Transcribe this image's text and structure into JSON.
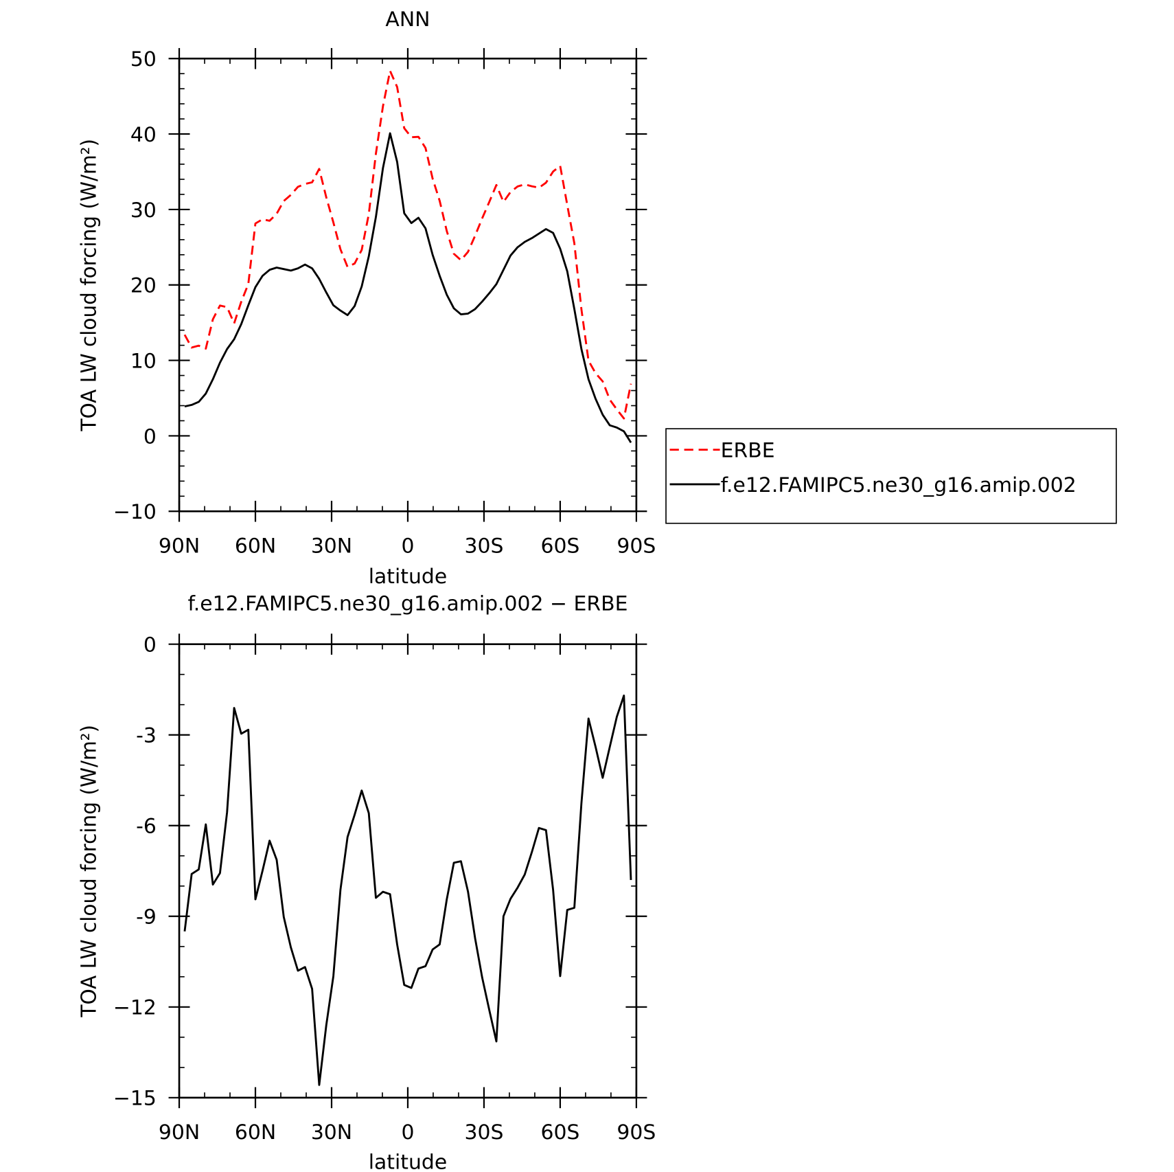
{
  "chart_data": [
    {
      "type": "line",
      "title": "ANN",
      "xlabel": "latitude",
      "ylabel": "TOA LW cloud forcing (W/m²)",
      "x": [
        87.86,
        85.1,
        82.31,
        79.53,
        76.74,
        73.95,
        71.16,
        68.37,
        65.58,
        62.79,
        60.0,
        57.21,
        54.42,
        51.63,
        48.84,
        46.04,
        43.25,
        40.46,
        37.67,
        34.88,
        32.09,
        29.3,
        26.51,
        23.72,
        20.93,
        18.14,
        15.35,
        12.56,
        9.77,
        6.98,
        4.19,
        1.4,
        -1.4,
        -4.19,
        -6.98,
        -9.77,
        -12.56,
        -15.35,
        -18.14,
        -20.93,
        -23.72,
        -26.51,
        -29.3,
        -32.09,
        -34.88,
        -37.67,
        -40.46,
        -43.25,
        -46.04,
        -48.84,
        -51.63,
        -54.42,
        -57.21,
        -60.0,
        -62.79,
        -65.58,
        -68.37,
        -71.16,
        -73.95,
        -76.74,
        -79.53,
        -82.31,
        -85.1,
        -87.86
      ],
      "xlim": [
        90,
        -90
      ],
      "xticks": [
        {
          "value": 90,
          "label": "90N"
        },
        {
          "value": 60,
          "label": "60N"
        },
        {
          "value": 30,
          "label": "30N"
        },
        0,
        {
          "value": -30,
          "label": "30S"
        },
        {
          "value": -60,
          "label": "60S"
        },
        {
          "value": -90,
          "label": "90S"
        }
      ],
      "ylim": [
        -10,
        50
      ],
      "yticks": [
        {
          "value": -10,
          "label": "−10"
        },
        0,
        10,
        20,
        30,
        40,
        50
      ],
      "legend": "outside-right",
      "series": [
        {
          "name": "ERBE",
          "color": "#ff0000",
          "dashed": true,
          "values": [
            13.4,
            11.7,
            11.95,
            11.56,
            15.45,
            17.27,
            17.06,
            14.91,
            17.76,
            20.13,
            28.14,
            28.7,
            28.5,
            29.43,
            31.12,
            31.93,
            33.0,
            33.38,
            33.6,
            35.38,
            31.6,
            28.28,
            24.72,
            22.38,
            22.84,
            24.64,
            29.39,
            37.39,
            43.69,
            48.37,
            46.23,
            40.77,
            39.57,
            39.63,
            38.15,
            34.1,
            31.14,
            27.14,
            24.13,
            23.28,
            24.39,
            26.53,
            28.83,
            31.0,
            33.24,
            31.0,
            32.32,
            33.05,
            33.32,
            33.08,
            32.88,
            33.55,
            35.02,
            35.78,
            30.59,
            25.52,
            16.76,
            9.96,
            8.3,
            7.22,
            4.8,
            3.5,
            2.3,
            6.9
          ]
        },
        {
          "name": "f.e12.FAMIPC5.ne30_g16.amip.002",
          "color": "#000000",
          "dashed": false,
          "values": [
            3.9,
            4.1,
            4.5,
            5.6,
            7.5,
            9.7,
            11.5,
            12.8,
            14.8,
            17.3,
            19.7,
            21.2,
            22.0,
            22.3,
            22.1,
            21.9,
            22.2,
            22.7,
            22.2,
            20.8,
            19.0,
            17.3,
            16.6,
            16.0,
            17.2,
            19.8,
            23.8,
            29.0,
            35.5,
            40.1,
            36.3,
            29.5,
            28.2,
            28.9,
            27.5,
            24.0,
            21.2,
            18.7,
            16.9,
            16.1,
            16.2,
            16.8,
            17.8,
            18.9,
            20.1,
            22.0,
            23.9,
            25.0,
            25.7,
            26.2,
            26.8,
            27.4,
            26.9,
            24.8,
            21.8,
            16.8,
            11.5,
            7.5,
            4.9,
            2.8,
            1.4,
            1.1,
            0.6,
            -0.9
          ]
        }
      ]
    },
    {
      "type": "line",
      "title": "f.e12.FAMIPC5.ne30_g16.amip.002 − ERBE",
      "xlabel": "latitude",
      "ylabel": "TOA LW cloud forcing (W/m²)",
      "x": [
        87.86,
        85.1,
        82.31,
        79.53,
        76.74,
        73.95,
        71.16,
        68.37,
        65.58,
        62.79,
        60.0,
        57.21,
        54.42,
        51.63,
        48.84,
        46.04,
        43.25,
        40.46,
        37.67,
        34.88,
        32.09,
        29.3,
        26.51,
        23.72,
        20.93,
        18.14,
        15.35,
        12.56,
        9.77,
        6.98,
        4.19,
        1.4,
        -1.4,
        -4.19,
        -6.98,
        -9.77,
        -12.56,
        -15.35,
        -18.14,
        -20.93,
        -23.72,
        -26.51,
        -29.3,
        -32.09,
        -34.88,
        -37.67,
        -40.46,
        -43.25,
        -46.04,
        -48.84,
        -51.63,
        -54.42,
        -57.21,
        -60.0,
        -62.79,
        -65.58,
        -68.37,
        -71.16,
        -73.95,
        -76.74,
        -79.53,
        -82.31,
        -85.1,
        -87.86
      ],
      "xlim": [
        90,
        -90
      ],
      "xticks": [
        {
          "value": 90,
          "label": "90N"
        },
        {
          "value": 60,
          "label": "60N"
        },
        {
          "value": 30,
          "label": "30N"
        },
        0,
        {
          "value": -30,
          "label": "30S"
        },
        {
          "value": -60,
          "label": "60S"
        },
        {
          "value": -90,
          "label": "90S"
        }
      ],
      "ylim": [
        -15,
        0
      ],
      "yticks": [
        {
          "value": -15,
          "label": "−15"
        },
        {
          "value": -12,
          "label": "−12"
        },
        -9,
        -6,
        -3,
        0
      ],
      "series": [
        {
          "color": "#000000",
          "dashed": false,
          "values": [
            -9.5,
            -7.6,
            -7.45,
            -5.96,
            -7.95,
            -7.57,
            -5.56,
            -2.11,
            -2.96,
            -2.83,
            -8.44,
            -7.5,
            -6.5,
            -7.13,
            -9.02,
            -10.03,
            -10.8,
            -10.68,
            -11.4,
            -14.58,
            -12.6,
            -10.98,
            -8.12,
            -6.38,
            -5.64,
            -4.84,
            -5.59,
            -8.39,
            -8.19,
            -8.27,
            -9.93,
            -11.27,
            -11.37,
            -10.73,
            -10.65,
            -10.1,
            -9.93,
            -8.44,
            -7.23,
            -7.18,
            -8.19,
            -9.73,
            -11.03,
            -12.1,
            -13.14,
            -9.0,
            -8.42,
            -8.05,
            -7.62,
            -6.88,
            -6.08,
            -6.15,
            -8.12,
            -10.98,
            -8.79,
            -8.72,
            -5.26,
            -2.46,
            -3.4,
            -4.42,
            -3.4,
            -2.4,
            -1.7,
            -7.8
          ]
        }
      ]
    }
  ]
}
